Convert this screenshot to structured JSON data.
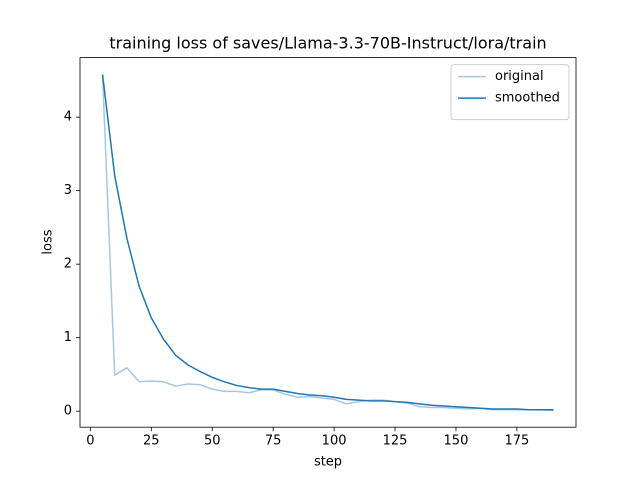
{
  "chart_data": {
    "type": "line",
    "title": "training loss of saves/Llama-3.3-70B-Instruct/lora/train",
    "x_label": "step",
    "y_label": "loss",
    "x": [
      5,
      10,
      15,
      20,
      25,
      30,
      35,
      40,
      45,
      50,
      55,
      60,
      65,
      70,
      75,
      80,
      85,
      90,
      95,
      100,
      105,
      110,
      115,
      120,
      125,
      130,
      135,
      140,
      145,
      150,
      155,
      160,
      165,
      170,
      175,
      180,
      185,
      190
    ],
    "series": [
      {
        "name": "original",
        "color": "#a5c8e1",
        "values": [
          4.58,
          0.49,
          0.59,
          0.4,
          0.41,
          0.4,
          0.34,
          0.37,
          0.36,
          0.3,
          0.27,
          0.27,
          0.25,
          0.29,
          0.29,
          0.23,
          0.19,
          0.2,
          0.18,
          0.16,
          0.1,
          0.13,
          0.15,
          0.15,
          0.13,
          0.11,
          0.06,
          0.05,
          0.05,
          0.04,
          0.03,
          0.04,
          0.02,
          0.02,
          0.02,
          0.02,
          0.02,
          0.01
        ]
      },
      {
        "name": "smoothed",
        "color": "#1f77b4",
        "values": [
          4.58,
          3.2,
          2.35,
          1.7,
          1.27,
          0.98,
          0.76,
          0.63,
          0.54,
          0.46,
          0.4,
          0.35,
          0.32,
          0.3,
          0.3,
          0.27,
          0.24,
          0.22,
          0.21,
          0.19,
          0.16,
          0.15,
          0.14,
          0.14,
          0.13,
          0.12,
          0.1,
          0.08,
          0.07,
          0.06,
          0.05,
          0.04,
          0.03,
          0.03,
          0.03,
          0.02,
          0.02,
          0.02
        ]
      }
    ],
    "xlim": [
      -4.25,
      199.25
    ],
    "ylim": [
      -0.218,
      4.81
    ],
    "xticks": [
      0,
      25,
      50,
      75,
      100,
      125,
      150,
      175
    ],
    "yticks": [
      0,
      1,
      2,
      3,
      4
    ],
    "legend": "upper right"
  }
}
